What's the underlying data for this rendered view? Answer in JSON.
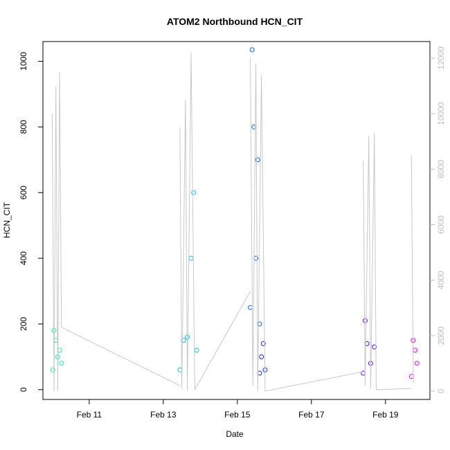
{
  "chart_data": {
    "type": "scatter",
    "title": "ATOM2 Northbound HCN_CIT",
    "xlabel": "Date",
    "ylabel": "HCN_CIT",
    "x_ticks": [
      "Feb 11",
      "Feb 13",
      "Feb 15",
      "Feb 17",
      "Feb 19"
    ],
    "x_tick_days": [
      11,
      13,
      15,
      17,
      19
    ],
    "xlim_days": [
      9.75,
      20.2
    ],
    "y_ticks": [
      0,
      200,
      400,
      600,
      800,
      1000
    ],
    "ylim": [
      -30,
      1060
    ],
    "y2_ticks": [
      0,
      2000,
      4000,
      6000,
      8000,
      10000,
      12000
    ],
    "y2lim": [
      -300,
      12600
    ],
    "grid": false,
    "legend": "none",
    "series": [
      {
        "color": "#00FFA0",
        "points": [
          [
            10.02,
            60
          ],
          [
            10.05,
            180
          ],
          [
            10.1,
            150
          ],
          [
            10.15,
            100
          ],
          [
            10.2,
            120
          ],
          [
            10.25,
            80
          ]
        ]
      },
      {
        "color": "#00C0FF",
        "points": [
          [
            13.45,
            60
          ],
          [
            13.55,
            150
          ],
          [
            13.65,
            160
          ],
          [
            13.75,
            400
          ],
          [
            13.82,
            600
          ],
          [
            13.9,
            120
          ]
        ]
      },
      {
        "color": "#0066FF",
        "points": [
          [
            15.35,
            250
          ],
          [
            15.4,
            1035
          ],
          [
            15.45,
            800
          ],
          [
            15.5,
            400
          ],
          [
            15.55,
            700
          ],
          [
            15.6,
            200
          ]
        ]
      },
      {
        "color": "#0A2AFF",
        "points": [
          [
            15.6,
            50
          ],
          [
            15.65,
            100
          ],
          [
            15.7,
            140
          ],
          [
            15.75,
            60
          ]
        ]
      },
      {
        "color": "#6A00FF",
        "points": [
          [
            18.4,
            50
          ],
          [
            18.45,
            210
          ],
          [
            18.5,
            140
          ],
          [
            18.6,
            80
          ],
          [
            18.7,
            130
          ]
        ]
      },
      {
        "color": "#EE00EE",
        "points": [
          [
            19.7,
            40
          ],
          [
            19.75,
            150
          ],
          [
            19.8,
            120
          ],
          [
            19.85,
            80
          ]
        ]
      }
    ],
    "secondary_line": {
      "color": "#c8c8c8",
      "axis": "right",
      "segments": [
        {
          "points": [
            [
              10.0,
              10000
            ],
            [
              10.05,
              0
            ],
            [
              10.1,
              11000
            ],
            [
              10.15,
              0
            ],
            [
              10.2,
              11500
            ],
            [
              10.25,
              2300
            ]
          ]
        },
        {
          "points": [
            [
              10.25,
              2300
            ],
            [
              13.45,
              200
            ]
          ]
        },
        {
          "points": [
            [
              13.45,
              9500
            ],
            [
              13.5,
              100
            ],
            [
              13.6,
              10500
            ],
            [
              13.65,
              0
            ],
            [
              13.75,
              12200
            ],
            [
              13.85,
              50
            ]
          ]
        },
        {
          "points": [
            [
              13.85,
              50
            ],
            [
              15.35,
              3600
            ]
          ]
        },
        {
          "points": [
            [
              15.35,
              12000
            ],
            [
              15.42,
              200
            ],
            [
              15.5,
              11800
            ],
            [
              15.55,
              0
            ],
            [
              15.65,
              11400
            ],
            [
              15.75,
              0
            ]
          ]
        },
        {
          "points": [
            [
              15.75,
              0
            ],
            [
              18.4,
              700
            ]
          ]
        },
        {
          "points": [
            [
              18.4,
              8300
            ],
            [
              18.45,
              200
            ],
            [
              18.55,
              9200
            ],
            [
              18.6,
              100
            ],
            [
              18.7,
              9300
            ],
            [
              18.75,
              50
            ]
          ]
        },
        {
          "points": [
            [
              18.75,
              50
            ],
            [
              19.7,
              100
            ]
          ]
        },
        {
          "points": [
            [
              19.7,
              8500
            ],
            [
              19.75,
              300
            ]
          ]
        }
      ]
    }
  }
}
